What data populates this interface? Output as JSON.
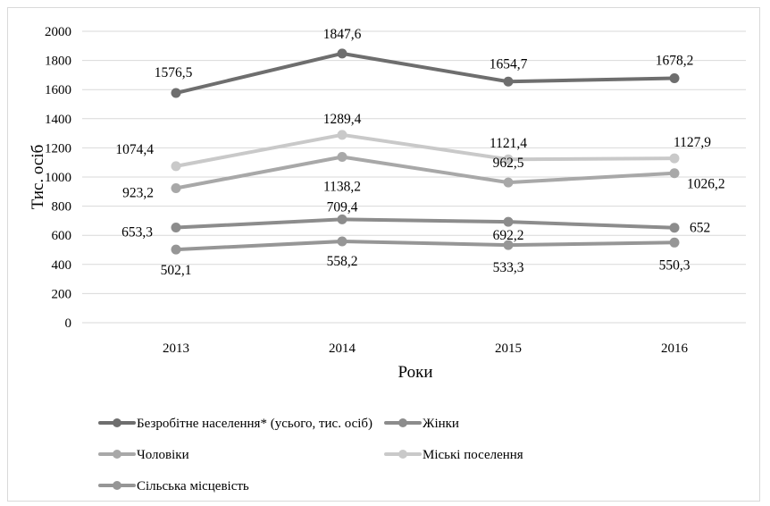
{
  "chart_data": {
    "type": "line",
    "title": "",
    "xlabel": "Роки",
    "ylabel": "Тис. осіб",
    "categories": [
      "2013",
      "2014",
      "2015",
      "2016"
    ],
    "ylim": [
      0,
      2000
    ],
    "yticks": [
      "0",
      "200",
      "400",
      "600",
      "800",
      "1000",
      "1200",
      "1400",
      "1600",
      "1800",
      "2000"
    ],
    "grid": true,
    "legend_position": "bottom",
    "series": [
      {
        "name": "Безробітне населення* (усього, тис. осіб)",
        "values": [
          1576.5,
          1847.6,
          1654.7,
          1678.2
        ],
        "labels": [
          "1576,5",
          "1847,6",
          "1654,7",
          "1678,2"
        ],
        "color": "#6e6e6e"
      },
      {
        "name": "Жінки",
        "values": [
          653.3,
          709.4,
          692.2,
          652
        ],
        "labels": [
          "653,3",
          "709,4",
          "692,2",
          "652"
        ],
        "color": "#8c8c8c"
      },
      {
        "name": "Чоловіки",
        "values": [
          923.2,
          1138.2,
          962.5,
          1026.2
        ],
        "labels": [
          "923,2",
          "1138,2",
          "962,5",
          "1026,2"
        ],
        "color": "#a8a8a8"
      },
      {
        "name": "Міські поселення",
        "values": [
          1074.4,
          1289.4,
          1121.4,
          1127.9
        ],
        "labels": [
          "1074,4",
          "1289,4",
          "1121,4",
          "1127,9"
        ],
        "color": "#c9c9c9"
      },
      {
        "name": "Сільська місцевість",
        "values": [
          502.1,
          558.2,
          533.3,
          550.3
        ],
        "labels": [
          "502,1",
          "558,2",
          "533,3",
          "550,3"
        ],
        "color": "#969696"
      }
    ]
  }
}
